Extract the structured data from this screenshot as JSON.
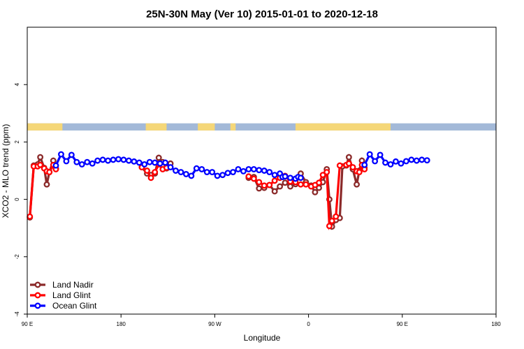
{
  "chart_data": {
    "type": "line",
    "title": "25N-30N May (Ver 10)   2015-01-01 to 2020-12-18",
    "xlabel": "Longitude",
    "ylabel": "XCO2 - MLO trend (ppm)",
    "xlim": [
      -180,
      180
    ],
    "ylim": [
      -4,
      6
    ],
    "x_ticks": [
      {
        "value": -180,
        "label": "90 E"
      },
      {
        "value": -108,
        "label": "180"
      },
      {
        "value": -36,
        "label": "90 W"
      },
      {
        "value": 36,
        "label": "0"
      },
      {
        "value": 108,
        "label": "90 E"
      },
      {
        "value": 180,
        "label": "180"
      }
    ],
    "y_ticks": [
      {
        "value": -4,
        "label": "-4"
      },
      {
        "value": -2,
        "label": "-2"
      },
      {
        "value": 0,
        "label": "0"
      },
      {
        "value": 2,
        "label": "2"
      },
      {
        "value": 4,
        "label": "4"
      }
    ],
    "legend_position": "bottom-left",
    "land_strip": {
      "y_range": [
        2.4,
        2.65
      ],
      "ocean_color": "#a3b9d8",
      "land_color": "#f5d778",
      "land_segments": [
        [
          -180,
          -153
        ],
        [
          -89,
          -73
        ],
        [
          -49,
          -36
        ],
        [
          -24,
          -20
        ],
        [
          26,
          99
        ]
      ]
    },
    "series": [
      {
        "name": "Land Nadir",
        "color": "#8b2a2a",
        "points": [
          [
            -178,
            -0.63
          ],
          [
            -175,
            1.18
          ],
          [
            -172,
            1.22
          ],
          [
            -170,
            1.47
          ],
          [
            -167,
            1.1
          ],
          [
            -165,
            0.52
          ],
          [
            -163,
            0.95
          ],
          [
            -160,
            1.35
          ],
          [
            -158,
            1.08
          ],
          [
            -92,
            1.12
          ],
          [
            -88,
            0.9
          ],
          [
            -85,
            0.85
          ],
          [
            -82,
            0.9
          ],
          [
            -79,
            1.45
          ],
          [
            -76,
            1.3
          ],
          [
            -73,
            1.08
          ],
          [
            -70,
            1.25
          ],
          [
            -10,
            0.75
          ],
          [
            -6,
            0.78
          ],
          [
            -2,
            0.38
          ],
          [
            2,
            0.4
          ],
          [
            6,
            0.5
          ],
          [
            10,
            0.28
          ],
          [
            14,
            0.45
          ],
          [
            18,
            0.58
          ],
          [
            22,
            0.45
          ],
          [
            26,
            0.53
          ],
          [
            30,
            0.9
          ],
          [
            34,
            0.6
          ],
          [
            38,
            0.48
          ],
          [
            41,
            0.25
          ],
          [
            44,
            0.4
          ],
          [
            47,
            0.6
          ],
          [
            50,
            1.05
          ],
          [
            52,
            0
          ],
          [
            54,
            -0.95
          ],
          [
            57,
            -0.72
          ],
          [
            60,
            -0.65
          ],
          [
            62,
            1.15
          ],
          [
            65,
            1.18
          ],
          [
            67,
            1.47
          ],
          [
            70,
            1.05
          ],
          [
            73,
            0.52
          ],
          [
            75,
            1.0
          ],
          [
            77,
            1.35
          ],
          [
            79,
            1.1
          ]
        ]
      },
      {
        "name": "Land Glint",
        "color": "#ff0000",
        "points": [
          [
            -178,
            -0.6
          ],
          [
            -175,
            1.15
          ],
          [
            -172,
            1.15
          ],
          [
            -170,
            1.2
          ],
          [
            -167,
            1.08
          ],
          [
            -165,
            0.98
          ],
          [
            -163,
            0.95
          ],
          [
            -160,
            1.2
          ],
          [
            -158,
            1.05
          ],
          [
            -92,
            1.12
          ],
          [
            -88,
            1.0
          ],
          [
            -85,
            0.75
          ],
          [
            -82,
            0.95
          ],
          [
            -79,
            1.22
          ],
          [
            -76,
            1.05
          ],
          [
            -73,
            1.1
          ],
          [
            -10,
            0.8
          ],
          [
            -6,
            0.72
          ],
          [
            -2,
            0.6
          ],
          [
            2,
            0.48
          ],
          [
            6,
            0.5
          ],
          [
            10,
            0.65
          ],
          [
            14,
            0.75
          ],
          [
            18,
            0.82
          ],
          [
            22,
            0.62
          ],
          [
            26,
            0.6
          ],
          [
            30,
            0.52
          ],
          [
            34,
            0.52
          ],
          [
            38,
            0.45
          ],
          [
            41,
            0.5
          ],
          [
            44,
            0.58
          ],
          [
            47,
            0.85
          ],
          [
            50,
            0.95
          ],
          [
            52,
            -0.93
          ],
          [
            54,
            -0.75
          ],
          [
            57,
            -0.6
          ],
          [
            60,
            1.18
          ],
          [
            65,
            1.2
          ],
          [
            67,
            1.25
          ],
          [
            70,
            1.12
          ],
          [
            73,
            0.98
          ],
          [
            75,
            0.95
          ],
          [
            77,
            1.2
          ],
          [
            79,
            1.05
          ]
        ]
      },
      {
        "name": "Ocean Glint",
        "color": "#0000ff",
        "points": [
          [
            -158,
            1.18
          ],
          [
            -154,
            1.57
          ],
          [
            -150,
            1.33
          ],
          [
            -146,
            1.55
          ],
          [
            -142,
            1.3
          ],
          [
            -138,
            1.22
          ],
          [
            -134,
            1.3
          ],
          [
            -130,
            1.25
          ],
          [
            -126,
            1.35
          ],
          [
            -122,
            1.38
          ],
          [
            -118,
            1.35
          ],
          [
            -114,
            1.38
          ],
          [
            -110,
            1.4
          ],
          [
            -106,
            1.38
          ],
          [
            -102,
            1.35
          ],
          [
            -98,
            1.32
          ],
          [
            -94,
            1.28
          ],
          [
            -90,
            1.22
          ],
          [
            -86,
            1.3
          ],
          [
            -82,
            1.28
          ],
          [
            -78,
            1.25
          ],
          [
            -74,
            1.28
          ],
          [
            -70,
            1.12
          ],
          [
            -66,
            1.0
          ],
          [
            -62,
            0.95
          ],
          [
            -58,
            0.88
          ],
          [
            -54,
            0.82
          ],
          [
            -50,
            1.08
          ],
          [
            -46,
            1.05
          ],
          [
            -42,
            0.95
          ],
          [
            -38,
            0.95
          ],
          [
            -34,
            0.82
          ],
          [
            -30,
            0.85
          ],
          [
            -26,
            0.92
          ],
          [
            -22,
            0.95
          ],
          [
            -18,
            1.05
          ],
          [
            -14,
            0.98
          ],
          [
            -10,
            1.05
          ],
          [
            -6,
            1.05
          ],
          [
            -2,
            1.02
          ],
          [
            2,
            1.0
          ],
          [
            6,
            0.95
          ],
          [
            10,
            0.85
          ],
          [
            14,
            0.9
          ],
          [
            16,
            0.78
          ],
          [
            18,
            0.8
          ],
          [
            22,
            0.75
          ],
          [
            26,
            0.72
          ],
          [
            28,
            0.78
          ],
          [
            30,
            0.75
          ],
          [
            79,
            1.2
          ],
          [
            83,
            1.57
          ],
          [
            87,
            1.33
          ],
          [
            91,
            1.55
          ],
          [
            95,
            1.28
          ],
          [
            99,
            1.22
          ],
          [
            103,
            1.32
          ],
          [
            107,
            1.25
          ],
          [
            111,
            1.33
          ],
          [
            115,
            1.38
          ],
          [
            119,
            1.35
          ],
          [
            123,
            1.38
          ],
          [
            127,
            1.36
          ]
        ]
      }
    ]
  }
}
